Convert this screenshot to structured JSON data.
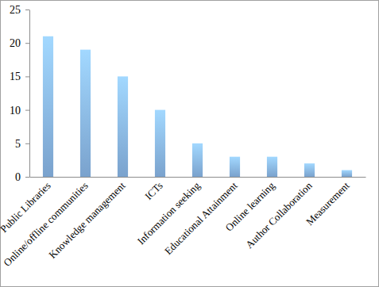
{
  "chart_data": {
    "type": "bar",
    "categories": [
      "Public Libraries",
      "Online/offline communities",
      "Knowledge management",
      "ICTs",
      "Information seeking",
      "Educational Attainment",
      "Online learning",
      "Author Collaboration",
      "Measurement"
    ],
    "values": [
      21,
      19,
      15,
      10,
      5,
      3,
      3,
      2,
      1
    ],
    "color": "#8ab8e8",
    "ylim": [
      0,
      25
    ],
    "yticks": [
      0,
      5,
      10,
      15,
      20,
      25
    ],
    "grid": false
  }
}
